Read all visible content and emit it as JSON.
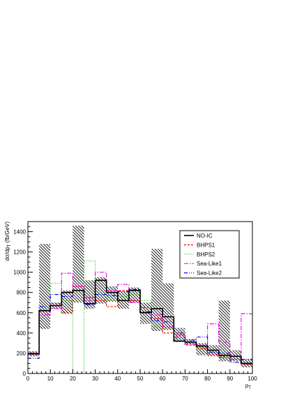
{
  "chart_data": {
    "type": "line",
    "xlabel": "p_T",
    "ylabel": "dσ/dp_T (fb/GeV)",
    "xlim": [
      0,
      100
    ],
    "ylim": [
      0,
      1500
    ],
    "x_ticks": [
      0,
      10,
      20,
      30,
      40,
      50,
      60,
      70,
      80,
      90,
      100
    ],
    "y_ticks": [
      0,
      200,
      400,
      600,
      800,
      1000,
      1200,
      1400
    ],
    "x_tick_labels": [
      "0",
      "10",
      "20",
      "30",
      "40",
      "50",
      "60",
      "70",
      "80",
      "90",
      "100"
    ],
    "y_tick_labels": [
      "0",
      "200",
      "400",
      "600",
      "800",
      "1000",
      "1200",
      "1400"
    ],
    "bin_edges": [
      0,
      5,
      10,
      15,
      20,
      25,
      30,
      35,
      40,
      45,
      50,
      55,
      60,
      65,
      70,
      75,
      80,
      85,
      90,
      95,
      100
    ],
    "legend_position": "top-right",
    "uncertainty_band": {
      "series": "NO-IC",
      "lower": [
        170,
        440,
        640,
        590,
        700,
        640,
        690,
        710,
        640,
        700,
        490,
        420,
        430,
        310,
        290,
        180,
        170,
        120,
        120,
        60
      ],
      "upper": [
        220,
        1280,
        700,
        820,
        1460,
        920,
        950,
        860,
        810,
        850,
        700,
        1230,
        890,
        450,
        340,
        300,
        280,
        720,
        230,
        140
      ]
    },
    "series": [
      {
        "name": "NO-IC",
        "color": "#000000",
        "dash": "",
        "width": 1.6,
        "values": [
          195,
          620,
          670,
          800,
          820,
          690,
          920,
          800,
          720,
          820,
          600,
          640,
          560,
          320,
          310,
          270,
          230,
          180,
          170,
          100
        ]
      },
      {
        "name": "BHPS1",
        "color": "#ff0000",
        "dash": "3,2",
        "width": 1.2,
        "values": [
          200,
          620,
          690,
          600,
          860,
          750,
          720,
          660,
          820,
          720,
          650,
          540,
          400,
          380,
          280,
          250,
          190,
          160,
          140,
          90
        ]
      },
      {
        "name": "BHPS2",
        "color": "#00cc00",
        "dash": "1,1.5",
        "width": 1.0,
        "values": [
          180,
          630,
          890,
          720,
          0,
          1110,
          780,
          720,
          760,
          780,
          720,
          460,
          440,
          350,
          300,
          240,
          210,
          170,
          140,
          100
        ]
      },
      {
        "name": "Sea-Like1",
        "color": "#ff00ff",
        "dash": "6,2,1.5,2",
        "width": 1.2,
        "values": [
          190,
          580,
          640,
          990,
          860,
          720,
          1000,
          820,
          880,
          700,
          600,
          580,
          460,
          360,
          290,
          280,
          490,
          310,
          140,
          590
        ]
      },
      {
        "name": "Sea-Like2",
        "color": "#0000ff",
        "dash": "5,2,1,2,1,2",
        "width": 1.2,
        "values": [
          150,
          660,
          780,
          760,
          820,
          680,
          780,
          770,
          810,
          830,
          610,
          520,
          510,
          400,
          330,
          360,
          210,
          200,
          110,
          140
        ]
      }
    ]
  }
}
